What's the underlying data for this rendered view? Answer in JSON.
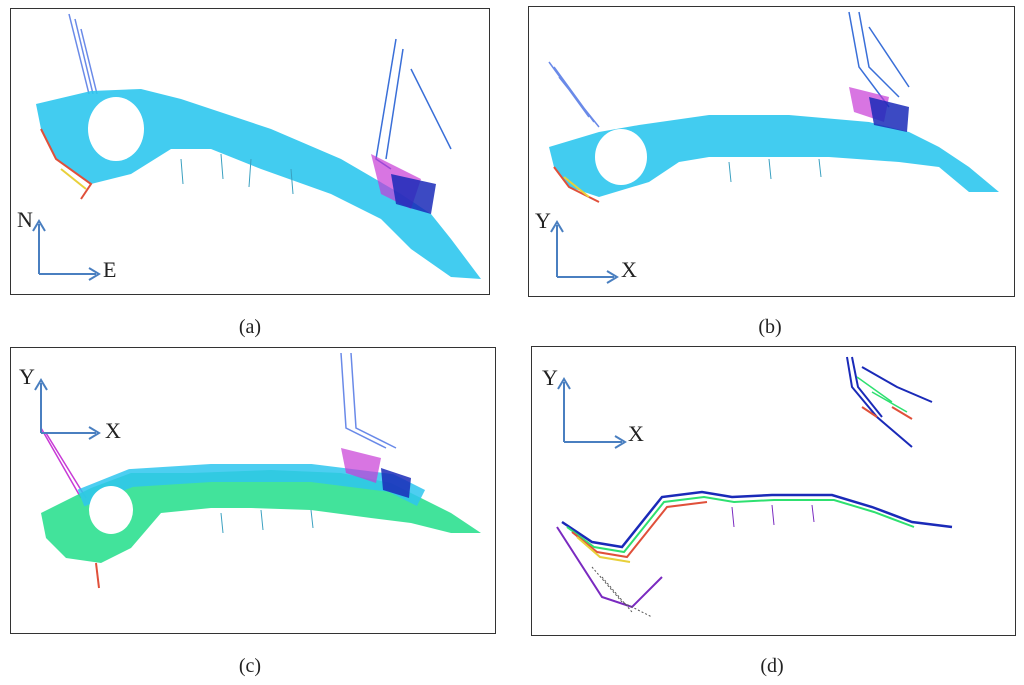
{
  "panels": [
    {
      "caption": "(a)",
      "axis_v": "N",
      "axis_h": "E"
    },
    {
      "caption": "(b)",
      "axis_v": "Y",
      "axis_h": "X"
    },
    {
      "caption": "(c)",
      "axis_v": "Y",
      "axis_h": "X"
    },
    {
      "caption": "(d)",
      "axis_v": "Y",
      "axis_h": "X"
    }
  ],
  "colors": {
    "cyan": "#2ec6ee",
    "blue_lines": "#3a6fd8",
    "dark_blue": "#1a2ab8",
    "magenta": "#c83ad6",
    "green": "#3ee07a",
    "axis_arrow": "#4a7fc0",
    "edge_red": "#e0503a",
    "edge_yellow": "#e8d03a",
    "frame": "#333333"
  }
}
